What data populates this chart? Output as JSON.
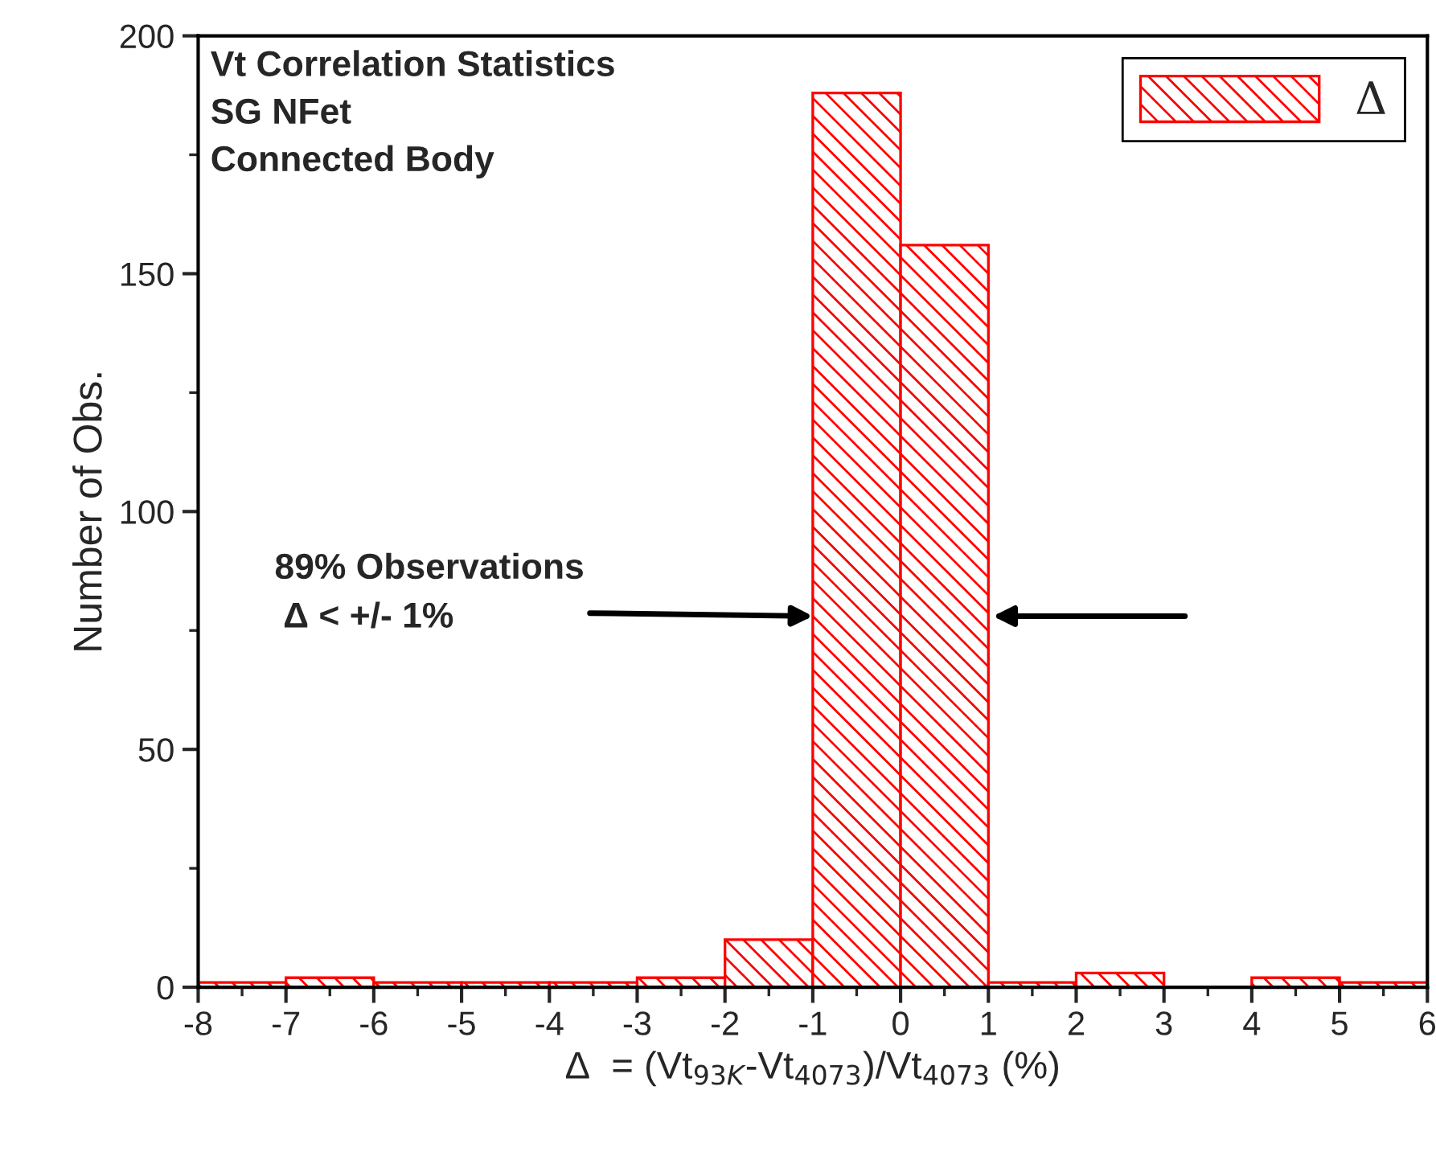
{
  "chart_data": {
    "type": "histogram",
    "xlabel": "Δ  = (Vt$_{93K}$-Vt$_{4073}$)/Vt$_{4073}$ (%)",
    "ylabel": "Number of Obs.",
    "bins": [
      -8,
      -7,
      -6,
      -5,
      -4,
      -3,
      -2,
      -1,
      0,
      1,
      2,
      3,
      4,
      5,
      6
    ],
    "series": [
      {
        "name": "Δ",
        "color": "#ff0000",
        "values": [
          1,
          2,
          1,
          1,
          1,
          2,
          10,
          188,
          156,
          1,
          3,
          0,
          2,
          1
        ]
      }
    ],
    "xlim": [
      -8,
      6
    ],
    "xticks": [
      -8,
      -7,
      -6,
      -5,
      -4,
      -3,
      -2,
      -1,
      0,
      1,
      2,
      3,
      4,
      5,
      6
    ],
    "ylim": [
      0,
      200
    ],
    "yticks": [
      0,
      50,
      100,
      150,
      200
    ],
    "grid": false,
    "legend": "top right",
    "annotations": [
      "Vt Correlation Statistics\nSG NFet\nConnected Body",
      {
        "text": "89% Observations\n Δ < +/- 1%",
        "x": -1,
        "y": 78
      }
    ]
  }
}
